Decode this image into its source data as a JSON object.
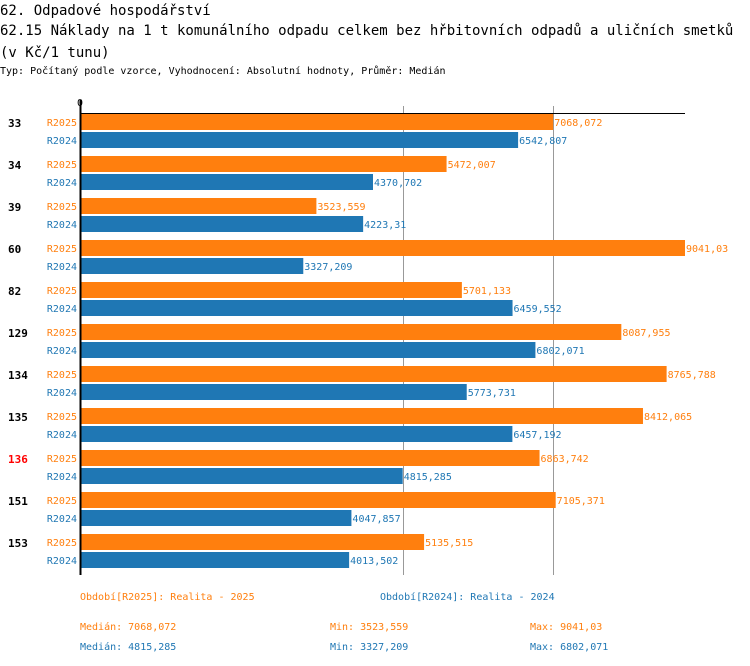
{
  "header": {
    "section": "62. Odpadové hospodářství",
    "title": "62.15 Náklady na 1 t komunálního odpadu celkem bez hřbitovních odpadů a uličních smetků (v Kč/1 tunu)",
    "subtitle": "Typ: Počítaný podle vzorce, Vyhodnocení: Absolutní hodnoty, Průměr: Medián"
  },
  "chart_data": {
    "type": "bar",
    "orientation": "horizontal",
    "title": "62.15 Náklady na 1 t komunálního odpadu celkem bez hřbitovních odpadů a uličních smetků (v Kč/1 tunu)",
    "axis_zero_label": "0",
    "categories": [
      "33",
      "34",
      "39",
      "60",
      "82",
      "129",
      "134",
      "135",
      "136",
      "151",
      "153"
    ],
    "highlighted": "136",
    "series": [
      {
        "name": "R2025",
        "color": "#ff7f0e",
        "values": [
          7068.072,
          5472.007,
          3523.559,
          9041.03,
          5701.133,
          8087.955,
          8765.788,
          8412.065,
          6863.742,
          7105.371,
          5135.515
        ],
        "labels": [
          "7068,072",
          "5472,007",
          "3523,559",
          "9041,03",
          "5701,133",
          "8087,955",
          "8765,788",
          "8412,065",
          "6863,742",
          "7105,371",
          "5135,515"
        ]
      },
      {
        "name": "R2024",
        "color": "#1f77b4",
        "values": [
          6542.807,
          4370.702,
          4223.31,
          3327.209,
          6459.552,
          6802.071,
          5773.731,
          6457.192,
          4815.285,
          4047.857,
          4013.502
        ],
        "labels": [
          "6542,807",
          "4370,702",
          "4223,31",
          "3327,209",
          "6459,552",
          "6802,071",
          "5773,731",
          "6457,192",
          "4815,285",
          "4047,857",
          "4013,502"
        ]
      }
    ],
    "xlim": [
      0,
      9041.03
    ],
    "median_lines": [
      7068.072,
      4815.285
    ]
  },
  "legend": {
    "r2025": {
      "period": "Období[R2025]: Realita - 2025",
      "median": "Medián: 7068,072",
      "min": "Min: 3523,559",
      "max": "Max: 9041,03"
    },
    "r2024": {
      "period": "Období[R2024]: Realita - 2024",
      "median": "Medián: 4815,285",
      "min": "Min: 3327,209",
      "max": "Max: 6802,071"
    }
  }
}
